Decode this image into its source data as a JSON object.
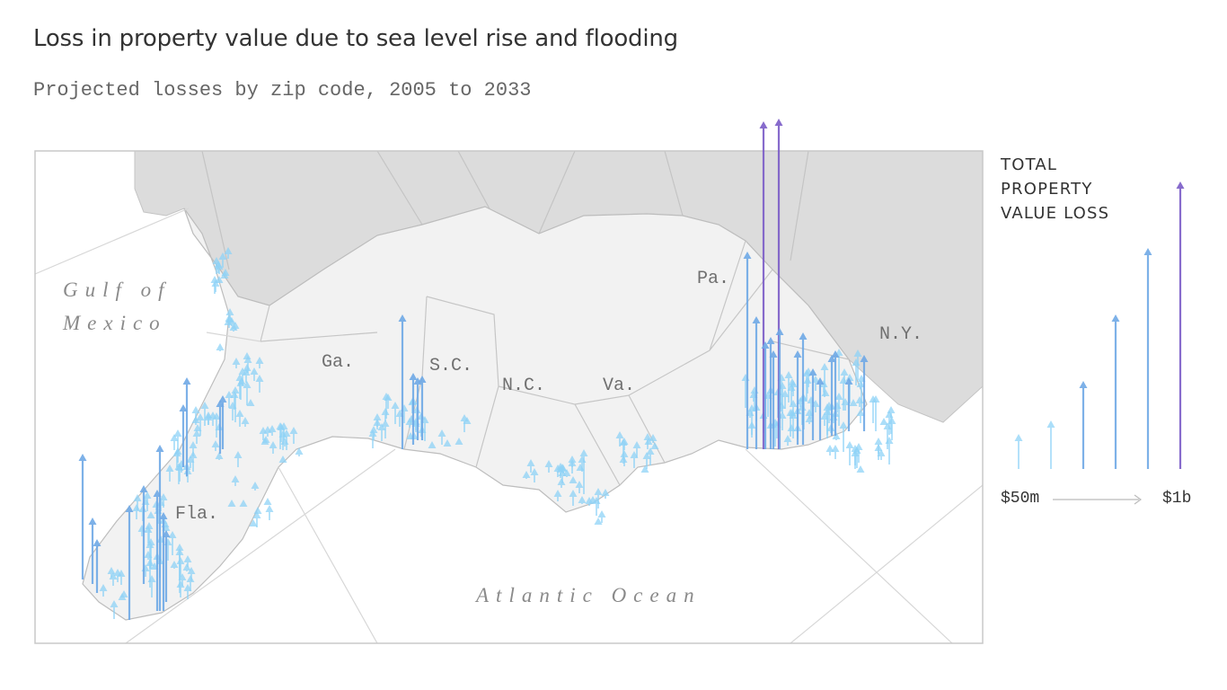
{
  "header": {
    "title": "Loss in property value due to sea level rise and flooding",
    "subtitle": "Projected losses by zip code, 2005 to 2033"
  },
  "map": {
    "water_labels": {
      "gulf_line1": "Gulf of",
      "gulf_line2": "Mexico",
      "atlantic": "Atlantic Ocean"
    },
    "state_labels": {
      "fla": "Fla.",
      "ga": "Ga.",
      "sc": "S.C.",
      "nc": "N.C.",
      "va": "Va.",
      "pa": "Pa.",
      "ny": "N.Y."
    },
    "colors": {
      "small_loss": "#8fd3f7",
      "medium_loss": "#6fa9e6",
      "large_loss": "#7b5cc7",
      "land_focus": "#f2f2f2",
      "land_other": "#dcdcdc",
      "water": "#ffffff"
    }
  },
  "legend": {
    "title_line1": "TOTAL",
    "title_line2": "PROPERTY",
    "title_line3": "VALUE LOSS",
    "min_label": "$50m",
    "max_label": "$1b",
    "samples_usd_millions": [
      50,
      100,
      250,
      500,
      750,
      1000
    ]
  }
}
